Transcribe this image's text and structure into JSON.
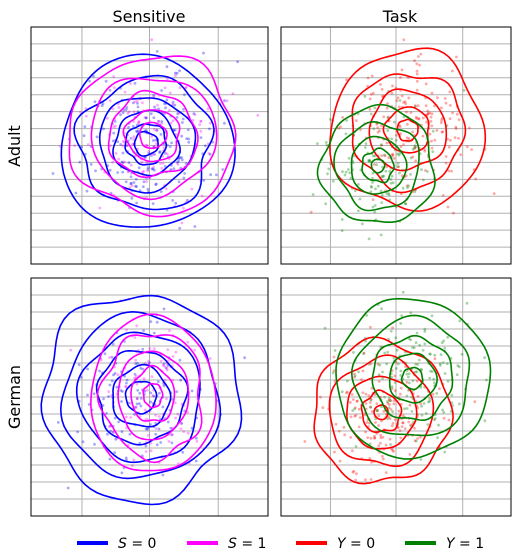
{
  "figure": {
    "columns": [
      "Sensitive",
      "Task"
    ],
    "rows": [
      "Adult",
      "German"
    ]
  },
  "legend": [
    {
      "label_var": "S",
      "label_val": "0",
      "color": "#0000ff"
    },
    {
      "label_var": "S",
      "label_val": "1",
      "color": "#ff00ff"
    },
    {
      "label_var": "Y",
      "label_val": "0",
      "color": "#ff0000"
    },
    {
      "label_var": "Y",
      "label_val": "1",
      "color": "#008000"
    }
  ],
  "chart_data": [
    {
      "type": "scatter",
      "row": "Adult",
      "column": "Sensitive",
      "grid": true,
      "series": [
        {
          "name": "S = 0",
          "color": "#0000ff",
          "center": [
            -0.1,
            0.05
          ],
          "spread": [
            1.0,
            1.0
          ],
          "levels": [
            0.35,
            0.6,
            0.95,
            1.4,
            1.95,
            2.55
          ],
          "points": 220
        },
        {
          "name": "S = 1",
          "color": "#ff00ff",
          "center": [
            0.1,
            0.3
          ],
          "spread": [
            1.0,
            0.95
          ],
          "levels": [
            0.4,
            0.8,
            1.3,
            1.85,
            2.45
          ],
          "points": 150
        }
      ]
    },
    {
      "type": "scatter",
      "row": "Adult",
      "column": "Task",
      "grid": true,
      "series": [
        {
          "name": "Y = 0",
          "color": "#ff0000",
          "center": [
            0.35,
            0.45
          ],
          "spread": [
            0.9,
            0.9
          ],
          "levels": [
            0.35,
            0.75,
            1.3,
            1.9,
            2.6
          ],
          "points": 200
        },
        {
          "name": "Y = 1",
          "color": "#008000",
          "center": [
            -0.55,
            -0.6
          ],
          "spread": [
            0.8,
            0.8
          ],
          "levels": [
            0.25,
            0.6,
            1.05,
            1.6,
            2.15
          ],
          "points": 150
        }
      ]
    },
    {
      "type": "scatter",
      "row": "German",
      "column": "Sensitive",
      "grid": true,
      "series": [
        {
          "name": "S = 0",
          "color": "#0000ff",
          "center": [
            -0.25,
            0.0
          ],
          "spread": [
            1.0,
            1.05
          ],
          "levels": [
            0.45,
            0.85,
            1.3,
            1.8,
            2.3,
            2.9
          ],
          "points": 150
        },
        {
          "name": "S = 1",
          "color": "#ff00ff",
          "center": [
            0.1,
            0.05
          ],
          "spread": [
            0.8,
            1.0
          ],
          "levels": [
            0.35,
            0.8,
            1.3,
            1.85,
            2.3
          ],
          "points": 130
        }
      ]
    },
    {
      "type": "scatter",
      "row": "German",
      "column": "Task",
      "grid": true,
      "series": [
        {
          "name": "Y = 0",
          "color": "#ff0000",
          "center": [
            -0.45,
            -0.45
          ],
          "spread": [
            0.85,
            0.85
          ],
          "levels": [
            0.25,
            0.7,
            1.25,
            1.85,
            2.45
          ],
          "points": 180
        },
        {
          "name": "Y = 1",
          "color": "#008000",
          "center": [
            0.5,
            0.55
          ],
          "spread": [
            0.9,
            0.9
          ],
          "levels": [
            0.35,
            0.8,
            1.35,
            1.95,
            2.6
          ],
          "points": 180
        }
      ]
    }
  ]
}
